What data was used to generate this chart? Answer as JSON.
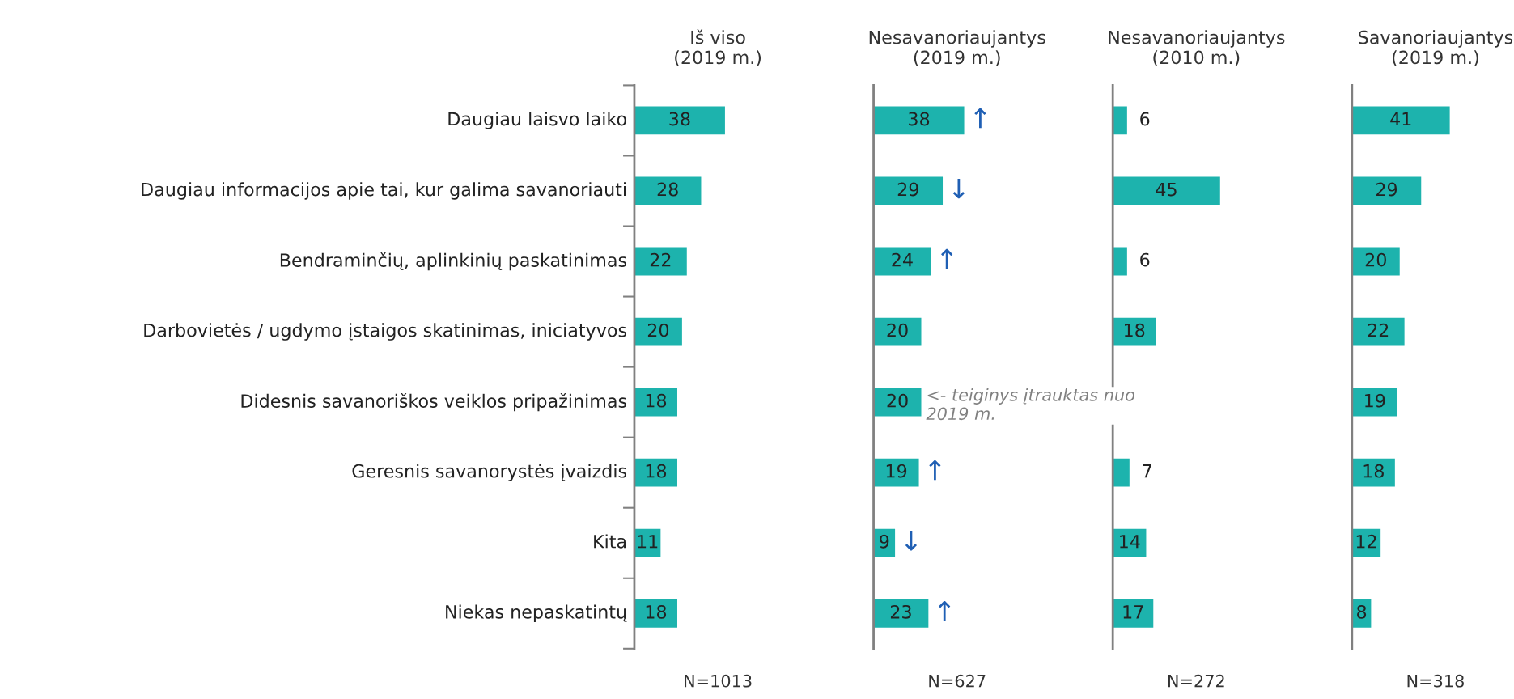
{
  "chart_data": [
    {
      "type": "bar",
      "orientation": "horizontal",
      "title": "Iš viso\n(2019 m.)",
      "categories": [
        "Daugiau laisvo laiko",
        "Daugiau informacijos apie tai, kur galima savanoriauti",
        "Bendraminčių, aplinkinių paskatinimas",
        "Darbovietės / ugdymo įstaigos skatinimas, iniciatyvos",
        "Didesnis savanoriškos veiklos pripažinimas",
        "Geresnis savanorystės įvaizdis",
        "Kita",
        "Niekas nepaskatintų"
      ],
      "values": [
        38,
        28,
        22,
        20,
        18,
        18,
        11,
        18
      ],
      "color": "#1db3ad",
      "data_labels": true,
      "tick_labels": "y",
      "annotations": [
        "N=1013"
      ]
    },
    {
      "type": "bar",
      "orientation": "horizontal",
      "title": "Nesavanoriaujantys\n(2019 m.)",
      "categories": [
        "Daugiau laisvo laiko",
        "Daugiau informacijos apie tai, kur galima savanoriauti",
        "Bendraminčių, aplinkinių paskatinimas",
        "Darbovietės / ugdymo įstaigos skatinimas, iniciatyvos",
        "Didesnis savanoriškos veiklos pripažinimas",
        "Geresnis savanorystės įvaizdis",
        "Kita",
        "Niekas nepaskatintų"
      ],
      "values": [
        38,
        29,
        24,
        20,
        20,
        19,
        9,
        23
      ],
      "color": "#1db3ad",
      "data_labels": true,
      "tick_labels": false,
      "annotations": [
        {
          "text": "↑",
          "x": 38,
          "y": "Daugiau laisvo laiko"
        },
        {
          "text": "↓",
          "x": 29,
          "y": "Daugiau informacijos apie tai, kur galima savanoriauti"
        },
        {
          "text": "↑",
          "x": 24,
          "y": "Bendraminčių, aplinkinių paskatinimas"
        },
        {
          "text": "<- teiginys įtrauktas nuo\n2019 m.",
          "x": 20,
          "y": "Didesnis savanoriškos veiklos pripažinimas"
        },
        {
          "text": "↑",
          "x": 19,
          "y": "Geresnis savanorystės įvaizdis"
        },
        {
          "text": "↓",
          "x": 9,
          "y": "Kita"
        },
        {
          "text": "↑",
          "x": 23,
          "y": "Niekas nepaskatintų"
        },
        "N=627"
      ]
    },
    {
      "type": "bar",
      "orientation": "horizontal",
      "title": "Nesavanoriaujantys\n(2010 m.)",
      "categories": [
        "Daugiau laisvo laiko",
        "Daugiau informacijos apie tai, kur galima savanoriauti",
        "Bendraminčių, aplinkinių paskatinimas",
        "Darbovietės / ugdymo įstaigos skatinimas, iniciatyvos",
        "Didesnis savanoriškos veiklos pripažinimas",
        "Geresnis savanorystės įvaizdis",
        "Kita",
        "Niekas nepaskatintų"
      ],
      "values": [
        6,
        45,
        6,
        18,
        null,
        7,
        14,
        17
      ],
      "color": "#1db3ad",
      "data_labels": true,
      "tick_labels": false,
      "annotations": [
        "N=272"
      ]
    },
    {
      "type": "bar",
      "orientation": "horizontal",
      "title": "Savanoriaujantys\n(2019 m.)",
      "categories": [
        "Daugiau laisvo laiko",
        "Daugiau informacijos apie tai, kur galima savanoriauti",
        "Bendraminčių, aplinkinių paskatinimas",
        "Darbovietės / ugdymo įstaigos skatinimas, iniciatyvos",
        "Didesnis savanoriškos veiklos pripažinimas",
        "Geresnis savanorystės įvaizdis",
        "Kita",
        "Niekas nepaskatintų"
      ],
      "values": [
        41,
        29,
        20,
        22,
        19,
        18,
        12,
        8
      ],
      "color": "#1db3ad",
      "data_labels": true,
      "tick_labels": false,
      "annotations": [
        "N=318"
      ]
    }
  ]
}
